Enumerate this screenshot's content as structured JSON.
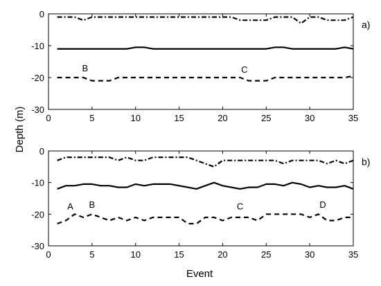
{
  "figure": {
    "ylabel": "Depth (m)",
    "xlabel": "Event"
  },
  "chart_data": [
    {
      "type": "line",
      "panel_label": "a)",
      "xlim": [
        0,
        35
      ],
      "ylim": [
        -30,
        0
      ],
      "xticks": [
        0,
        5,
        10,
        15,
        20,
        25,
        30,
        35
      ],
      "yticks": [
        0,
        -10,
        -20,
        -30
      ],
      "grid": false,
      "series": [
        {
          "style": "dash-dot",
          "x": [
            1,
            2,
            3,
            4,
            5,
            6,
            7,
            8,
            9,
            10,
            11,
            12,
            13,
            14,
            15,
            16,
            17,
            18,
            19,
            20,
            21,
            22,
            23,
            24,
            25,
            26,
            27,
            28,
            29,
            30,
            31,
            32,
            33,
            34,
            35
          ],
          "values": [
            -1,
            -1,
            -1,
            -2,
            -1,
            -1,
            -1,
            -1,
            -1,
            -1,
            -1,
            -1,
            -1,
            -1,
            -1,
            -1,
            -1,
            -1,
            -1,
            -1,
            -1,
            -2,
            -2,
            -2,
            -2,
            -1,
            -1,
            -1,
            -3,
            -1,
            -1,
            -2,
            -2,
            -2,
            -1
          ]
        },
        {
          "style": "solid",
          "x": [
            1,
            2,
            3,
            4,
            5,
            6,
            7,
            8,
            9,
            10,
            11,
            12,
            13,
            14,
            15,
            16,
            17,
            18,
            19,
            20,
            21,
            22,
            23,
            24,
            25,
            26,
            27,
            28,
            29,
            30,
            31,
            32,
            33,
            34,
            35
          ],
          "values": [
            -11,
            -11,
            -11,
            -11,
            -11,
            -11,
            -11,
            -11,
            -11,
            -10.5,
            -10.5,
            -11,
            -11,
            -11,
            -11,
            -11,
            -11,
            -11,
            -11,
            -11,
            -11,
            -11,
            -11,
            -11,
            -11,
            -10.5,
            -10.5,
            -11,
            -11,
            -11,
            -11,
            -11,
            -11,
            -10.5,
            -11
          ]
        },
        {
          "style": "dashed",
          "x": [
            1,
            2,
            3,
            4,
            5,
            6,
            7,
            8,
            9,
            10,
            11,
            12,
            13,
            14,
            15,
            16,
            17,
            18,
            19,
            20,
            21,
            22,
            23,
            24,
            25,
            26,
            27,
            28,
            29,
            30,
            31,
            32,
            33,
            34,
            35
          ],
          "values": [
            -20,
            -20,
            -20,
            -20,
            -21,
            -21,
            -21,
            -20,
            -20,
            -20,
            -20,
            -20,
            -20,
            -20,
            -20,
            -20,
            -20,
            -20,
            -20,
            -20,
            -20,
            -20,
            -21,
            -21,
            -21,
            -20,
            -20,
            -20,
            -20,
            -20,
            -20,
            -20,
            -20,
            -20,
            -19.5
          ]
        }
      ],
      "annotations": [
        {
          "text": "B",
          "x": 4.2,
          "y": -18
        },
        {
          "text": "C",
          "x": 22.5,
          "y": -18.5
        }
      ]
    },
    {
      "type": "line",
      "panel_label": "b)",
      "xlim": [
        0,
        35
      ],
      "ylim": [
        -30,
        0
      ],
      "xticks": [
        0,
        5,
        10,
        15,
        20,
        25,
        30,
        35
      ],
      "yticks": [
        0,
        -10,
        -20,
        -30
      ],
      "grid": false,
      "series": [
        {
          "style": "dash-dot",
          "x": [
            1,
            2,
            3,
            4,
            5,
            6,
            7,
            8,
            9,
            10,
            11,
            12,
            13,
            14,
            15,
            16,
            17,
            18,
            19,
            20,
            21,
            22,
            23,
            24,
            25,
            26,
            27,
            28,
            29,
            30,
            31,
            32,
            33,
            34,
            35
          ],
          "values": [
            -3,
            -2,
            -2,
            -2,
            -2,
            -2,
            -2,
            -3,
            -2,
            -3,
            -3,
            -2,
            -2,
            -2,
            -2,
            -2,
            -3,
            -4,
            -5,
            -3,
            -3,
            -3,
            -3,
            -3,
            -3,
            -3,
            -4,
            -3,
            -3,
            -3,
            -3,
            -4,
            -3,
            -4,
            -3
          ]
        },
        {
          "style": "solid",
          "x": [
            1,
            2,
            3,
            4,
            5,
            6,
            7,
            8,
            9,
            10,
            11,
            12,
            13,
            14,
            15,
            16,
            17,
            18,
            19,
            20,
            21,
            22,
            23,
            24,
            25,
            26,
            27,
            28,
            29,
            30,
            31,
            32,
            33,
            34,
            35
          ],
          "values": [
            -12,
            -11,
            -11,
            -10.5,
            -10.5,
            -11,
            -11,
            -11.5,
            -11.5,
            -10.5,
            -11,
            -10.5,
            -10.5,
            -10.5,
            -11,
            -11.5,
            -12,
            -11,
            -10,
            -11,
            -11.5,
            -12,
            -11.5,
            -11.5,
            -10.5,
            -10.5,
            -11,
            -10,
            -10.5,
            -11.5,
            -11,
            -11.5,
            -11.5,
            -11,
            -12
          ]
        },
        {
          "style": "dashed",
          "x": [
            1,
            2,
            3,
            4,
            5,
            6,
            7,
            8,
            9,
            10,
            11,
            12,
            13,
            14,
            15,
            16,
            17,
            18,
            19,
            20,
            21,
            22,
            23,
            24,
            25,
            26,
            27,
            28,
            29,
            30,
            31,
            32,
            33,
            34,
            35
          ],
          "values": [
            -23,
            -22,
            -20,
            -21,
            -20,
            -21,
            -22,
            -21,
            -22,
            -21,
            -22,
            -21,
            -21,
            -21,
            -21,
            -23,
            -23,
            -21,
            -21,
            -22,
            -21,
            -21,
            -21,
            -22,
            -20,
            -20,
            -20,
            -20,
            -20,
            -21,
            -20,
            -22,
            -22,
            -21,
            -21
          ]
        }
      ],
      "annotations": [
        {
          "text": "A",
          "x": 2.5,
          "y": -18.5
        },
        {
          "text": "B",
          "x": 5.0,
          "y": -18
        },
        {
          "text": "C",
          "x": 22.0,
          "y": -18.5
        },
        {
          "text": "D",
          "x": 31.5,
          "y": -18
        }
      ]
    }
  ]
}
